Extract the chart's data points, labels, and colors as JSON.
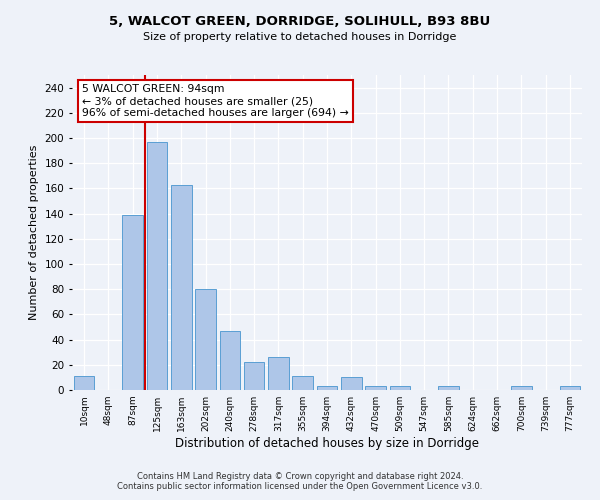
{
  "title": "5, WALCOT GREEN, DORRIDGE, SOLIHULL, B93 8BU",
  "subtitle": "Size of property relative to detached houses in Dorridge",
  "xlabel": "Distribution of detached houses by size in Dorridge",
  "ylabel": "Number of detached properties",
  "bar_labels": [
    "10sqm",
    "48sqm",
    "87sqm",
    "125sqm",
    "163sqm",
    "202sqm",
    "240sqm",
    "278sqm",
    "317sqm",
    "355sqm",
    "394sqm",
    "432sqm",
    "470sqm",
    "509sqm",
    "547sqm",
    "585sqm",
    "624sqm",
    "662sqm",
    "700sqm",
    "739sqm",
    "777sqm"
  ],
  "bar_values": [
    11,
    0,
    139,
    197,
    163,
    80,
    47,
    22,
    26,
    11,
    3,
    10,
    3,
    3,
    0,
    3,
    0,
    0,
    3,
    0,
    3
  ],
  "bar_color": "#aec6e8",
  "bar_edge_color": "#5a9fd4",
  "annotation_text": "5 WALCOT GREEN: 94sqm\n← 3% of detached houses are smaller (25)\n96% of semi-detached houses are larger (694) →",
  "annotation_box_color": "#ffffff",
  "annotation_box_edge_color": "#cc0000",
  "vline_x": 2.5,
  "vline_color": "#cc0000",
  "ylim": [
    0,
    250
  ],
  "yticks": [
    0,
    20,
    40,
    60,
    80,
    100,
    120,
    140,
    160,
    180,
    200,
    220,
    240
  ],
  "footer_line1": "Contains HM Land Registry data © Crown copyright and database right 2024.",
  "footer_line2": "Contains public sector information licensed under the Open Government Licence v3.0.",
  "bg_color": "#eef2f9",
  "plot_bg_color": "#eef2f9"
}
